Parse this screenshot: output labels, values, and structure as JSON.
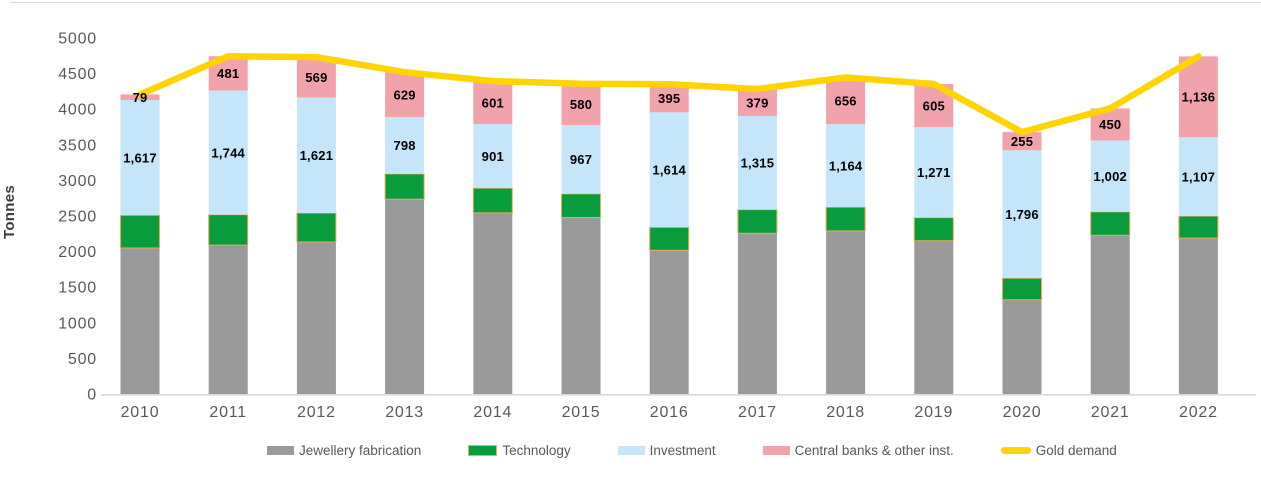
{
  "chart_data": {
    "type": "bar",
    "variant": "stacked-column-with-line",
    "title": "",
    "xlabel": "",
    "ylabel": "Tonnes",
    "ylim": [
      0,
      5000
    ],
    "ytick_step": 500,
    "grid": false,
    "legend_position": "bottom",
    "axis_color": "#595959",
    "axis_line_color": "#d9d9d9",
    "data_label_color": "#000000",
    "categories": [
      "2010",
      "2011",
      "2012",
      "2013",
      "2014",
      "2015",
      "2016",
      "2017",
      "2018",
      "2019",
      "2020",
      "2021",
      "2022"
    ],
    "series": [
      {
        "name": "Jewellery fabrication",
        "type": "bar",
        "color": "#9A9A9A",
        "show_labels": false,
        "values": [
          2051,
          2091,
          2135,
          2736,
          2544,
          2479,
          2019,
          2257,
          2290,
          2152,
          1324,
          2229,
          2190
        ]
      },
      {
        "name": "Technology",
        "type": "bar",
        "color": "#089C3C",
        "border_color": "#E9AC52",
        "show_labels": false,
        "values": [
          460,
          428,
          407,
          356,
          348,
          332,
          323,
          333,
          335,
          326,
          303,
          330,
          309
        ]
      },
      {
        "name": "Investment",
        "type": "bar",
        "color": "#C5E6FA",
        "show_labels": true,
        "labels": [
          "1,617",
          "1,744",
          "1,621",
          "798",
          "901",
          "967",
          "1,614",
          "1,315",
          "1,164",
          "1,271",
          "1,796",
          "1,002",
          "1,107"
        ],
        "values": [
          1617,
          1744,
          1621,
          798,
          901,
          967,
          1614,
          1315,
          1164,
          1271,
          1796,
          1002,
          1107
        ]
      },
      {
        "name": "Central banks & other inst.",
        "type": "bar",
        "color": "#F2A2AA",
        "show_labels": true,
        "labels": [
          "79",
          "481",
          "569",
          "629",
          "601",
          "580",
          "395",
          "379",
          "656",
          "605",
          "255",
          "450",
          "1,136"
        ],
        "values": [
          79,
          481,
          569,
          629,
          601,
          580,
          395,
          379,
          656,
          605,
          255,
          450,
          1136
        ]
      },
      {
        "name": "Gold demand",
        "type": "line",
        "color": "#FFD400",
        "show_labels": false,
        "values": [
          4207,
          4744,
          4732,
          4519,
          4394,
          4358,
          4351,
          4284,
          4445,
          4354,
          3678,
          4011,
          4742
        ]
      }
    ]
  }
}
